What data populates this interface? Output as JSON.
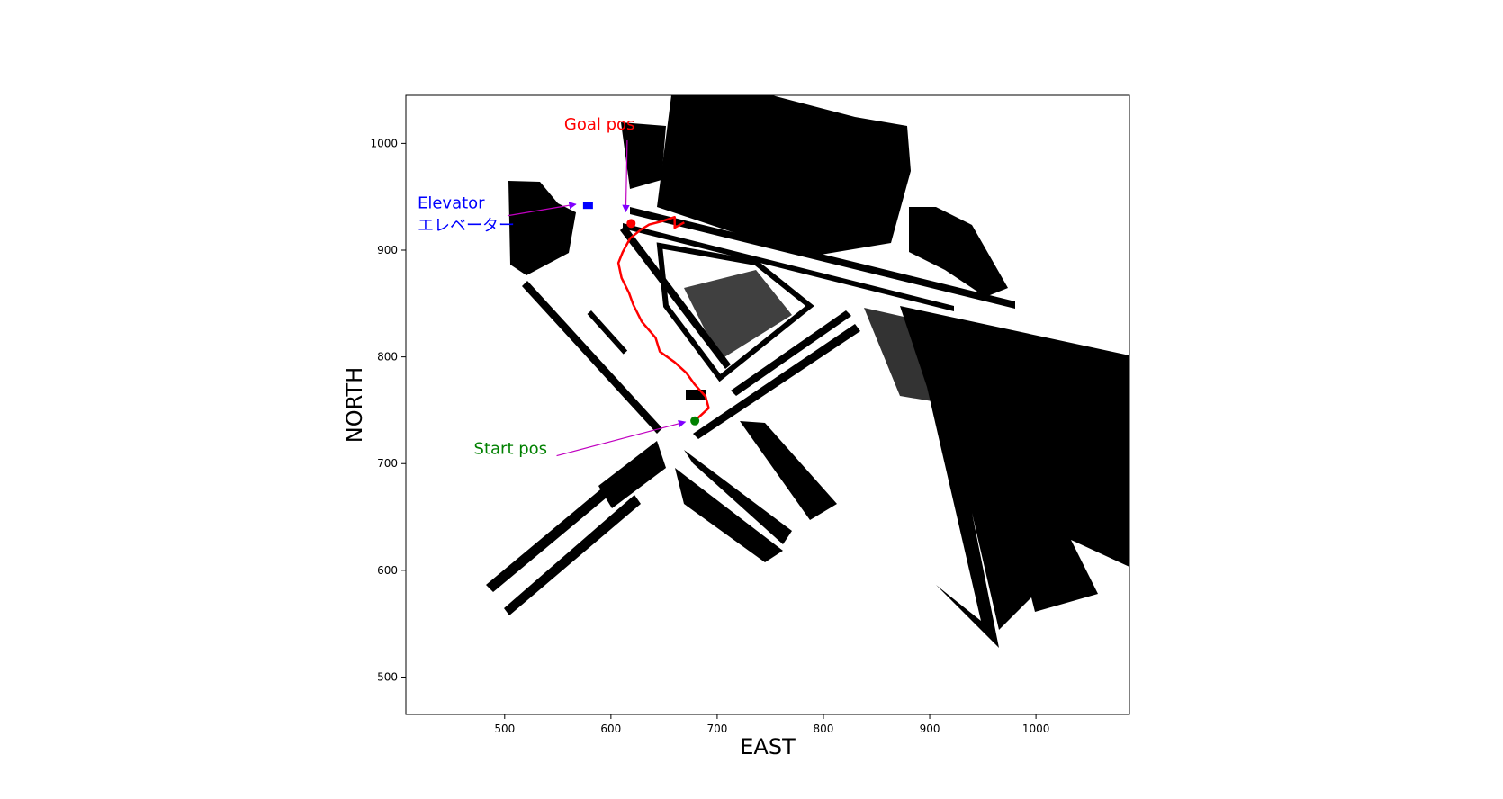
{
  "chart_data": {
    "type": "scatter",
    "title": "",
    "xlabel": "EAST",
    "ylabel": "NORTH",
    "xlim": [
      407,
      1088
    ],
    "ylim": [
      465,
      1045
    ],
    "xticks": [
      500,
      600,
      700,
      800,
      900,
      1000
    ],
    "yticks": [
      500,
      600,
      700,
      800,
      900,
      1000
    ],
    "grid": false,
    "legend": "none",
    "occupancy_map_color": "#000000",
    "path": {
      "color": "#ff0000",
      "points": [
        [
          680,
          741
        ],
        [
          692,
          752
        ],
        [
          689,
          763
        ],
        [
          679,
          774
        ],
        [
          671,
          785
        ],
        [
          660,
          795
        ],
        [
          646,
          805
        ],
        [
          642,
          818
        ],
        [
          629,
          833
        ],
        [
          621,
          849
        ],
        [
          617,
          860
        ],
        [
          610,
          874
        ],
        [
          607,
          888
        ],
        [
          611,
          898
        ],
        [
          618,
          911
        ],
        [
          628,
          919
        ],
        [
          636,
          924
        ],
        [
          648,
          927
        ],
        [
          660,
          931
        ],
        [
          660,
          921
        ],
        [
          669,
          926
        ]
      ]
    },
    "start": {
      "x": 679,
      "y": 740,
      "color": "#008000"
    },
    "goal": {
      "x": 619,
      "y": 925,
      "color": "#ff0000"
    },
    "elevator": {
      "x": 578,
      "y": 942,
      "color": "#0000ff"
    },
    "annotations": [
      {
        "id": "goal",
        "text": "Goal pos",
        "color": "#ff0000",
        "text_x": 556,
        "text_y": 1013,
        "target_x": 614,
        "target_y": 936
      },
      {
        "id": "elevator",
        "text": "Elevator",
        "color": "#0000ff",
        "text_x": 418,
        "text_y": 939,
        "target_x": 567,
        "target_y": 943
      },
      {
        "id": "elevator-jp",
        "text": "エレベーター",
        "color": "#0000ff",
        "text_x": 418,
        "text_y": 918
      },
      {
        "id": "start",
        "text": "Start pos",
        "color": "#008000",
        "text_x": 471,
        "text_y": 709,
        "target_x": 670,
        "target_y": 739
      }
    ],
    "arrow_color": "#c000c0"
  }
}
